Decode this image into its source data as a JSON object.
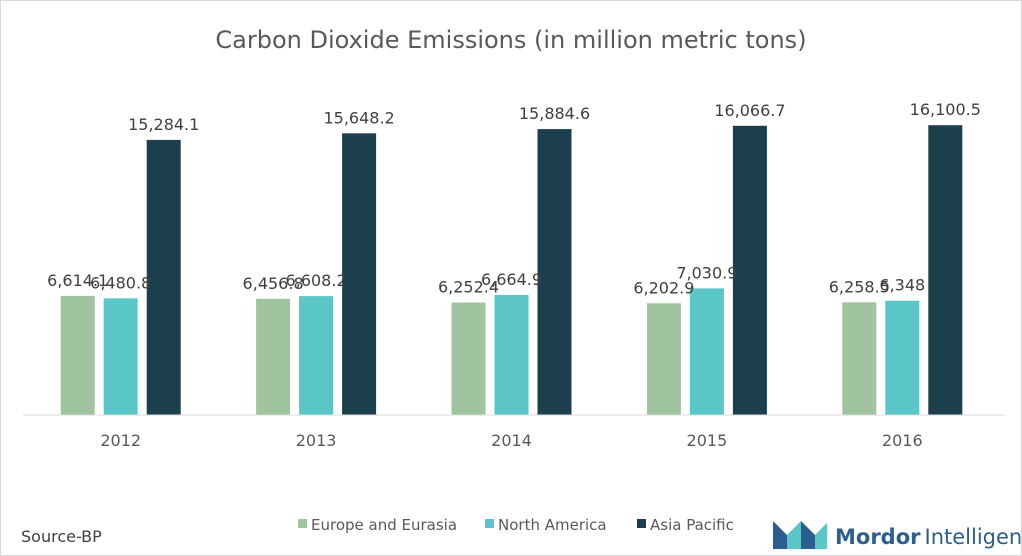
{
  "chart_data": {
    "type": "bar",
    "title": "Carbon Dioxide Emissions (in million metric tons)",
    "categories": [
      "2012",
      "2013",
      "2014",
      "2015",
      "2016"
    ],
    "series": [
      {
        "name": "Europe and Eurasia",
        "color": "#a0c4a0",
        "values": [
          6614.1,
          6456.8,
          6252.4,
          6202.9,
          6258.5
        ],
        "labels": [
          "6,614.1",
          "6,456.8",
          "6,252.4",
          "6,202.9",
          "6,258.5"
        ]
      },
      {
        "name": "North America",
        "color": "#5bc6c8",
        "values": [
          6480.8,
          6608.2,
          6664.9,
          7030.9,
          6348
        ],
        "labels": [
          "6,480.8",
          "6,608.2",
          "6,664.9",
          "7,030.9",
          "6,348"
        ]
      },
      {
        "name": "Asia Pacific",
        "color": "#1b3f4d",
        "values": [
          15284.1,
          15648.2,
          15884.6,
          16066.7,
          16100.5
        ],
        "labels": [
          "15,284.1",
          "15,648.2",
          "15,884.6",
          "16,066.7",
          "16,100.5"
        ]
      }
    ],
    "ylim": [
      0,
      18000
    ],
    "xlabel": "",
    "ylabel": "",
    "legend": "bottom-center"
  },
  "source": "Source-BP",
  "brand": {
    "name": "Mordor",
    "suffix": "Intelligence",
    "accent": "#2b5f8f",
    "icon": "mordor-logo-icon"
  }
}
